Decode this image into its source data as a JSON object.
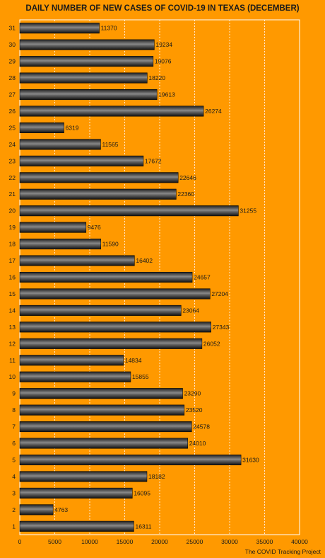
{
  "chart_data": {
    "type": "bar",
    "orientation": "horizontal",
    "title": "DAILY NUMBER OF NEW CASES OF COVID-19 IN TEXAS (DECEMBER)",
    "categories": [
      "1",
      "2",
      "3",
      "4",
      "5",
      "6",
      "7",
      "8",
      "9",
      "10",
      "11",
      "12",
      "13",
      "14",
      "15",
      "16",
      "17",
      "18",
      "19",
      "20",
      "21",
      "22",
      "23",
      "24",
      "25",
      "26",
      "27",
      "28",
      "29",
      "30",
      "31"
    ],
    "values": [
      16311,
      4763,
      16095,
      18182,
      31630,
      24010,
      24578,
      23520,
      23290,
      15855,
      14834,
      26052,
      27343,
      23064,
      27204,
      24657,
      16402,
      11590,
      9476,
      31255,
      22360,
      22646,
      17672,
      11565,
      6319,
      26274,
      19613,
      18220,
      19076,
      19234,
      11370
    ],
    "xlim": [
      0,
      40000
    ],
    "xticks": [
      "0",
      "5000",
      "10000",
      "15000",
      "20000",
      "25000",
      "30000",
      "35000",
      "40000"
    ],
    "xlabel": "",
    "ylabel": "",
    "grid": true,
    "colors": {
      "background": "#FF9900",
      "bar": "#1f1f1f",
      "bar_highlight": "#8a8a8a",
      "gridline": "#ffffff",
      "text": "#1a1a1a"
    }
  },
  "source": "The COVID Tracking Project"
}
